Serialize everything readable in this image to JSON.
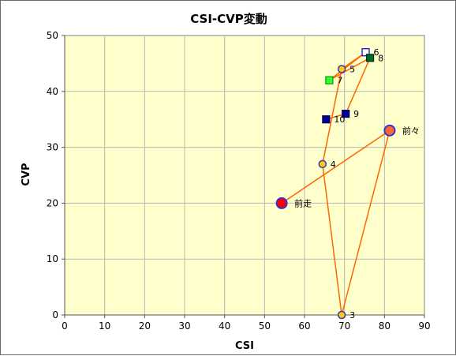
{
  "chart_data": {
    "type": "scatter",
    "title": "CSI-CVP変動",
    "xlabel": "CSI",
    "ylabel": "CVP",
    "xlim": [
      0,
      90
    ],
    "ylim": [
      0,
      50
    ],
    "xticks": [
      0,
      10,
      20,
      30,
      40,
      50,
      60,
      70,
      80,
      90
    ],
    "yticks": [
      0,
      10,
      20,
      30,
      40,
      50
    ],
    "grid": true,
    "plot_background": "#ffffcc",
    "line_color": "#ff6600",
    "path_order": [
      "前走",
      "前々",
      "3",
      "4",
      "5",
      "6",
      "7",
      "8",
      "9",
      "10"
    ],
    "points": [
      {
        "label": "前走",
        "x": 54.3,
        "y": 20,
        "marker": "circle",
        "fill": "#ff0000",
        "stroke": "#3333cc",
        "size": "large"
      },
      {
        "label": "前々",
        "x": 81.3,
        "y": 33,
        "marker": "circle",
        "fill": "#ff6633",
        "stroke": "#3333cc",
        "size": "large"
      },
      {
        "label": "3",
        "x": 69.3,
        "y": 0,
        "marker": "circle",
        "fill": "#ffcc00",
        "stroke": "#3333cc",
        "size": "small"
      },
      {
        "label": "4",
        "x": 64.5,
        "y": 27,
        "marker": "circle",
        "fill": "#ffcc00",
        "stroke": "#3333cc",
        "size": "small"
      },
      {
        "label": "5",
        "x": 69.3,
        "y": 44,
        "marker": "circle",
        "fill": "#ffcc00",
        "stroke": "#3333cc",
        "size": "small"
      },
      {
        "label": "6",
        "x": 75.3,
        "y": 47,
        "marker": "square",
        "fill": "#ffffff",
        "stroke": "#0000cc",
        "size": "small"
      },
      {
        "label": "7",
        "x": 66.2,
        "y": 42,
        "marker": "square",
        "fill": "#33ff33",
        "stroke": "#009900",
        "size": "small"
      },
      {
        "label": "8",
        "x": 76.4,
        "y": 46,
        "marker": "square",
        "fill": "#006633",
        "stroke": "#003300",
        "size": "small"
      },
      {
        "label": "9",
        "x": 70.3,
        "y": 36,
        "marker": "square",
        "fill": "#000099",
        "stroke": "#000066",
        "size": "small"
      },
      {
        "label": "10",
        "x": 65.4,
        "y": 35,
        "marker": "square",
        "fill": "#000099",
        "stroke": "#000066",
        "size": "small"
      }
    ]
  }
}
